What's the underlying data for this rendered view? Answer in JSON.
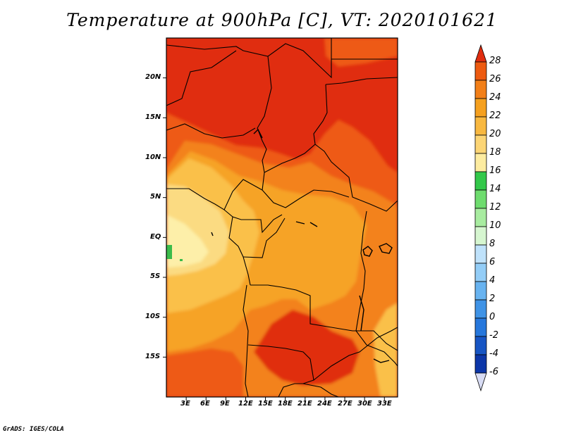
{
  "title": "Temperature at 900hPa [C], VT: 2020101621",
  "credit": "GrADS: IGES/COLA",
  "map": {
    "lon_range": [
      0,
      35
    ],
    "lat_range": [
      -20,
      25
    ],
    "lat_ticks": [
      {
        "value": 20,
        "label": "20N"
      },
      {
        "value": 15,
        "label": "15N"
      },
      {
        "value": 10,
        "label": "10N"
      },
      {
        "value": 5,
        "label": "5N"
      },
      {
        "value": 0,
        "label": "EQ"
      },
      {
        "value": -5,
        "label": "5S"
      },
      {
        "value": -10,
        "label": "10S"
      },
      {
        "value": -15,
        "label": "15S"
      }
    ],
    "lon_ticks": [
      {
        "value": 3,
        "label": "3E"
      },
      {
        "value": 6,
        "label": "6E"
      },
      {
        "value": 9,
        "label": "9E"
      },
      {
        "value": 12,
        "label": "12E"
      },
      {
        "value": 15,
        "label": "15E"
      },
      {
        "value": 18,
        "label": "18E"
      },
      {
        "value": 21,
        "label": "21E"
      },
      {
        "value": 24,
        "label": "24E"
      },
      {
        "value": 27,
        "label": "27E"
      },
      {
        "value": 30,
        "label": "30E"
      },
      {
        "value": 33,
        "label": "33E"
      }
    ]
  },
  "colorbar": {
    "levels": [
      {
        "value": "28",
        "color": "#ed5a10"
      },
      {
        "value": "26",
        "color": "#f27f18"
      },
      {
        "value": "24",
        "color": "#f5a01f"
      },
      {
        "value": "22",
        "color": "#f8b840"
      },
      {
        "value": "20",
        "color": "#fcd575"
      },
      {
        "value": "18",
        "color": "#fdeca0"
      },
      {
        "value": "16",
        "color": "#33c84a"
      },
      {
        "value": "14",
        "color": "#6edc6e"
      },
      {
        "value": "12",
        "color": "#a8eca0"
      },
      {
        "value": "10",
        "color": "#d6f6d0"
      },
      {
        "value": "8",
        "color": "#bfe2fb"
      },
      {
        "value": "6",
        "color": "#93cdf7"
      },
      {
        "value": "4",
        "color": "#68b3f0"
      },
      {
        "value": "2",
        "color": "#3f93e6"
      },
      {
        "value": "0",
        "color": "#2677dc"
      },
      {
        "value": "-2",
        "color": "#1755c4"
      },
      {
        "value": "-4",
        "color": "#0c36a8"
      },
      {
        "value": "-6",
        "color": "#06127a"
      }
    ],
    "top_arrow_color": "#e02d10",
    "bottom_arrow_color": "#d8dcf4"
  },
  "colors": {
    "t_gt_26": "#e02d10",
    "t_24_26": "#ee5a12",
    "t_22_24": "#f3821a",
    "t_20_22": "#f6a325",
    "t_18_20": "#fac049",
    "t_16_18": "#fbdb82",
    "t_14_16": "#fdefa9",
    "green": "#3bbb4a"
  }
}
